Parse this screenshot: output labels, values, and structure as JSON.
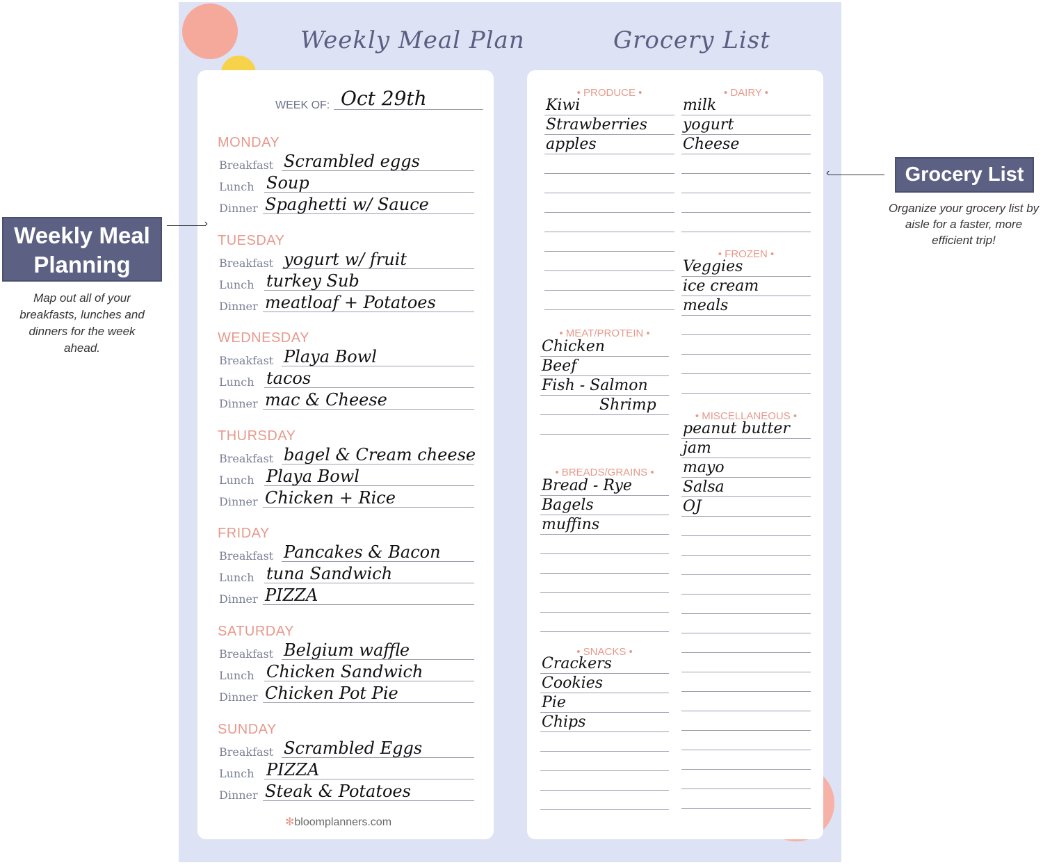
{
  "meal_plan": {
    "title": "Weekly Meal Plan",
    "week_of_label": "WEEK OF:",
    "week_of_value": "Oct 29th",
    "meal_labels": [
      "Breakfast",
      "Lunch",
      "Dinner"
    ],
    "days": [
      {
        "name": "MONDAY",
        "meals": [
          "Scrambled eggs",
          "Soup",
          "Spaghetti w/ Sauce"
        ]
      },
      {
        "name": "TUESDAY",
        "meals": [
          "yogurt w/ fruit",
          "turkey Sub",
          "meatloaf + Potatoes"
        ]
      },
      {
        "name": "WEDNESDAY",
        "meals": [
          "Playa Bowl",
          "tacos",
          "mac & Cheese"
        ]
      },
      {
        "name": "THURSDAY",
        "meals": [
          "bagel & Cream cheese",
          "Playa Bowl",
          "Chicken + Rice"
        ]
      },
      {
        "name": "FRIDAY",
        "meals": [
          "Pancakes & Bacon",
          "tuna Sandwich",
          "PIZZA"
        ]
      },
      {
        "name": "SATURDAY",
        "meals": [
          "Belgium waffle",
          "Chicken Sandwich",
          "Chicken Pot Pie"
        ]
      },
      {
        "name": "SUNDAY",
        "meals": [
          "Scrambled Eggs",
          "PIZZA",
          "Steak & Potatoes"
        ]
      }
    ],
    "footer": "bloomplanners.com"
  },
  "grocery": {
    "title": "Grocery List",
    "categories": [
      {
        "name": "• PRODUCE •",
        "items": [
          "Kiwi",
          "Strawberries",
          "apples"
        ]
      },
      {
        "name": "• DAIRY •",
        "items": [
          "milk",
          "yogurt",
          "Cheese"
        ]
      },
      {
        "name": "• FROZEN •",
        "items": [
          "Veggies",
          "ice cream",
          "meals"
        ]
      },
      {
        "name": "• MEAT/PROTEIN •",
        "items": [
          "Chicken",
          "Beef",
          "Fish - Salmon",
          "Shrimp"
        ]
      },
      {
        "name": "• MISCELLANEOUS •",
        "items": [
          "peanut butter",
          "jam",
          "mayo",
          "Salsa",
          "OJ"
        ]
      },
      {
        "name": "• BREADS/GRAINS •",
        "items": [
          "Bread - Rye",
          "Bagels",
          "muffins"
        ]
      },
      {
        "name": "• SNACKS •",
        "items": [
          "Crackers",
          "Cookies",
          "Pie",
          "Chips"
        ]
      }
    ]
  },
  "callouts": {
    "left": {
      "title": "Weekly Meal Planning",
      "caption": "Map out all of your breakfasts, lunches and dinners for the week ahead."
    },
    "right": {
      "title": "Grocery List",
      "caption": "Organize your grocery list by aisle for a faster, more efficient trip!"
    }
  },
  "colors": {
    "background": "#dde2f5",
    "accent": "#e7998c",
    "callout": "#5c6184"
  }
}
